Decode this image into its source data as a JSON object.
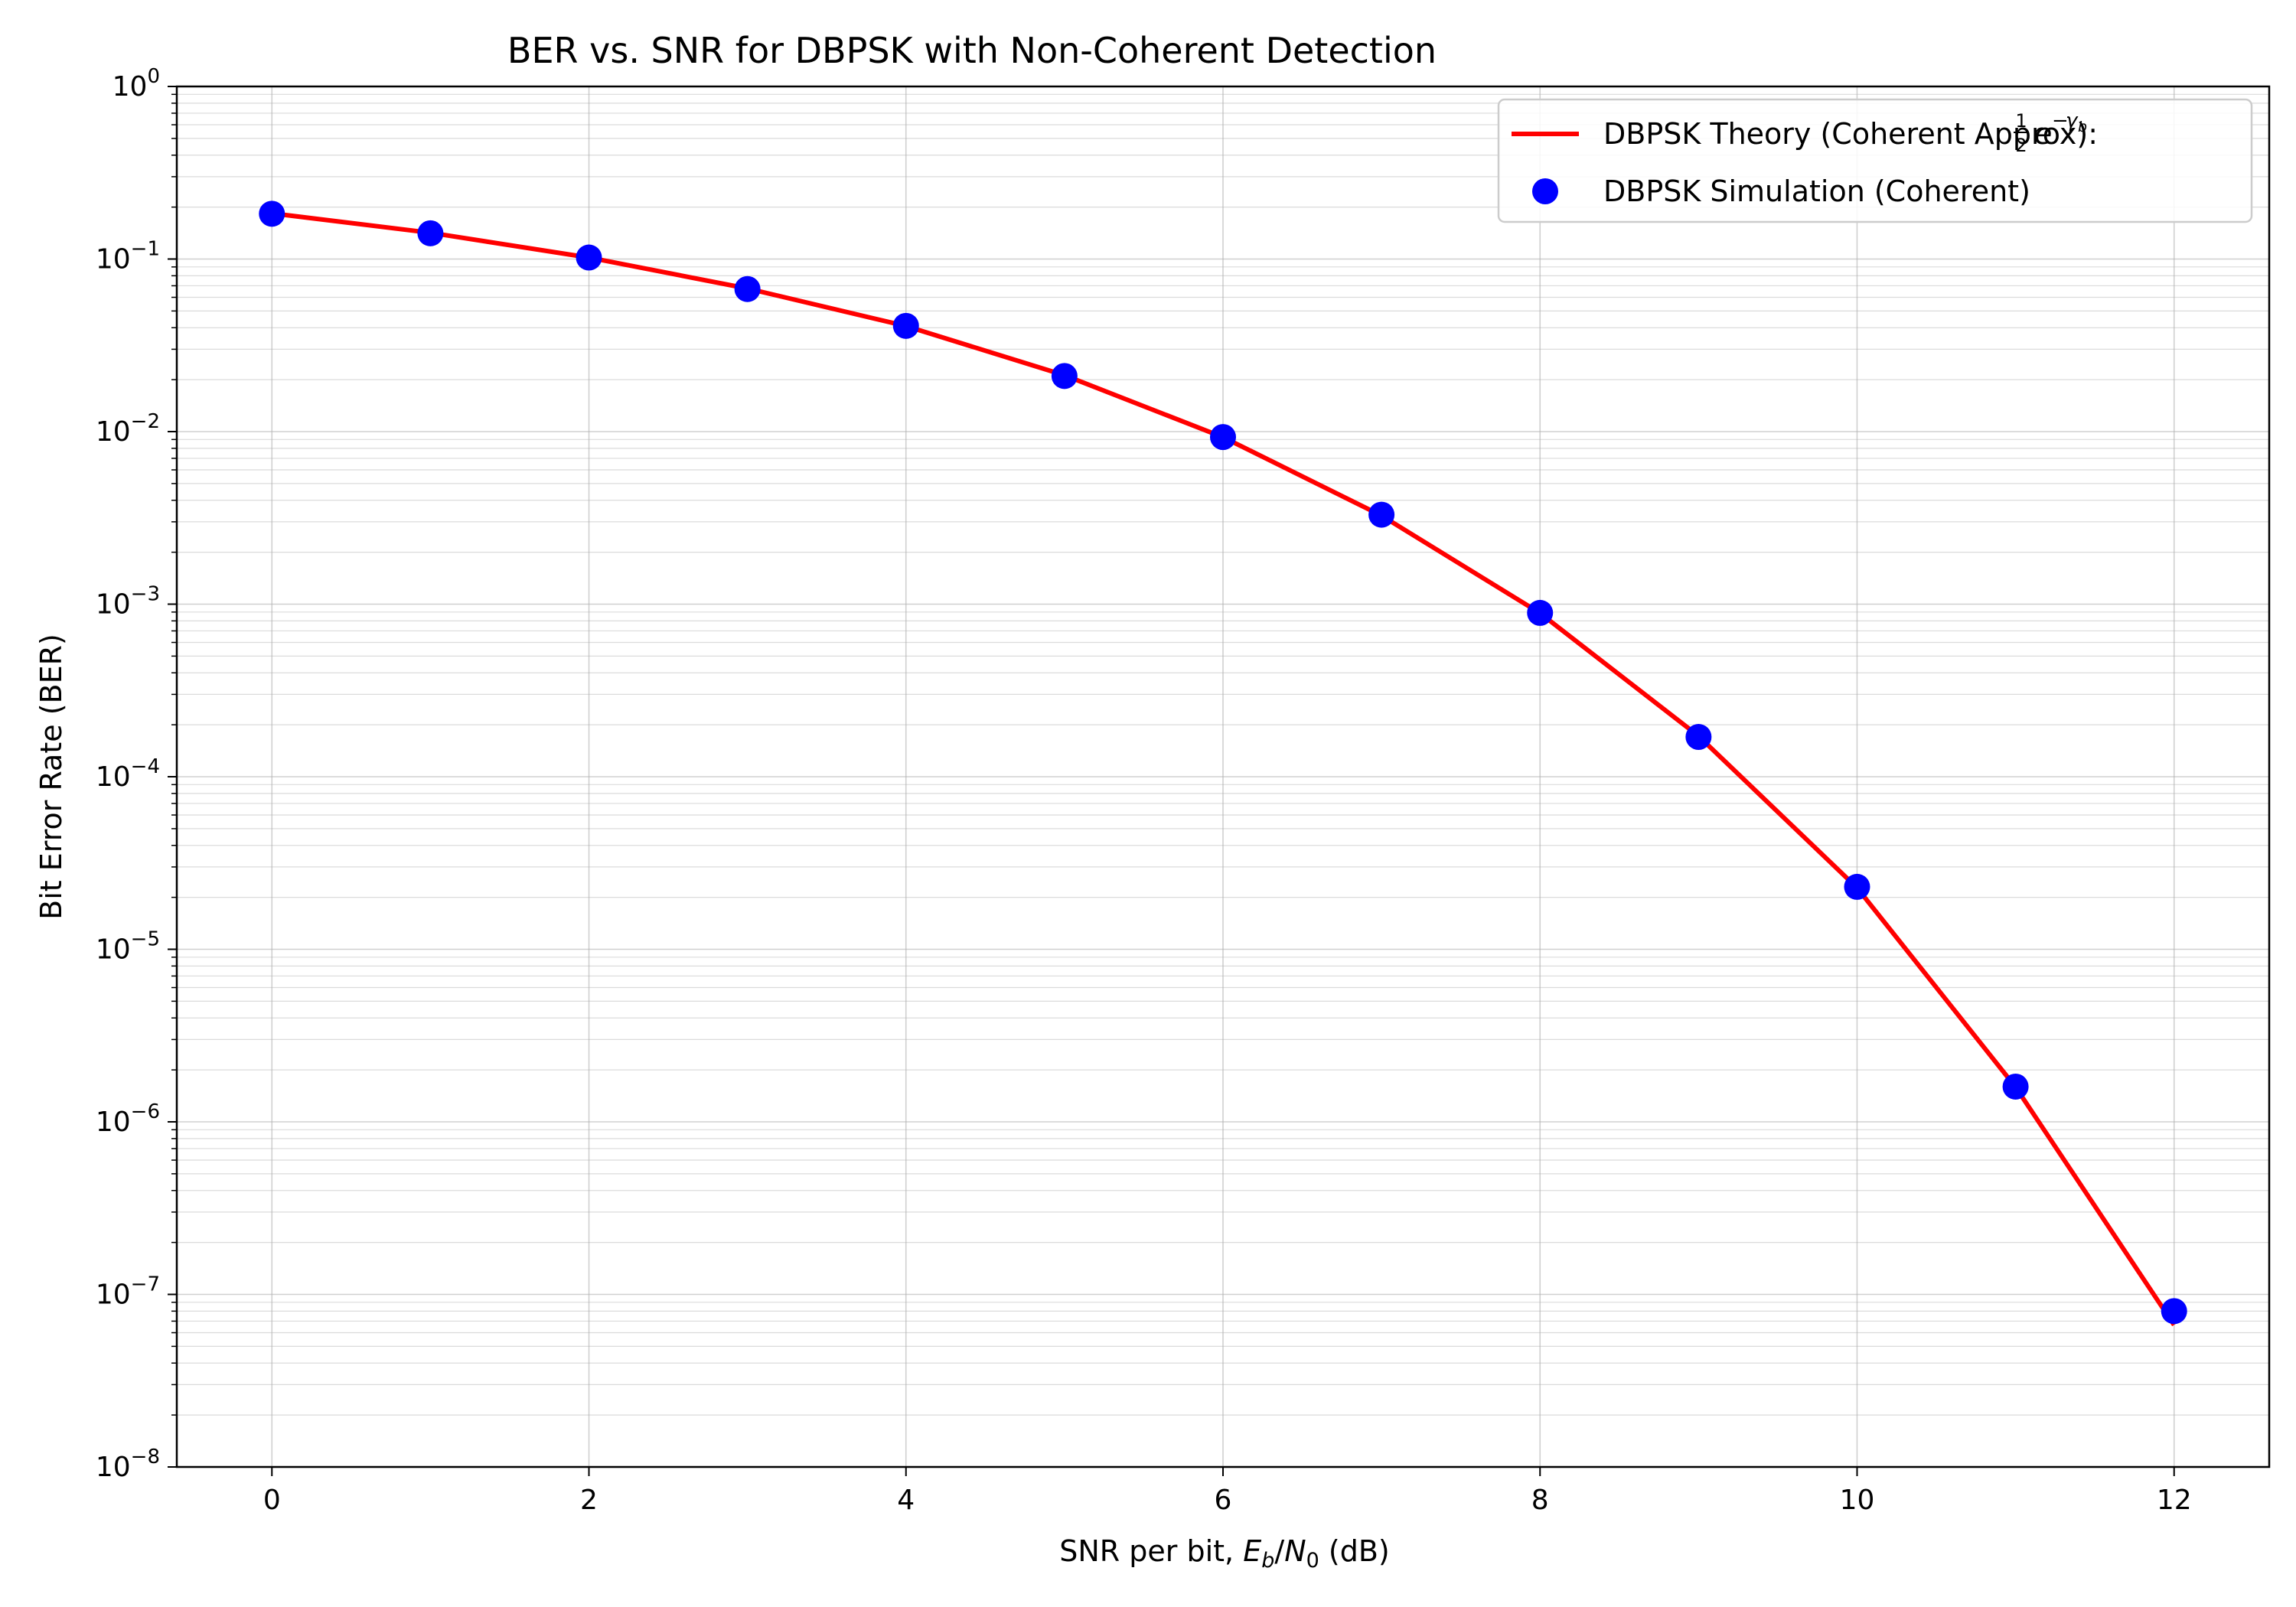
{
  "chart_data": {
    "type": "line",
    "title": "BER vs. SNR for DBPSK with Non-Coherent Detection",
    "xlabel_prefix": "SNR per bit, ",
    "xlabel_suffix": " (dB)",
    "ylabel": "Bit Error Rate (BER)",
    "y_scale": "log",
    "xlim": [
      -0.6,
      12.6
    ],
    "ylim": [
      1e-08,
      1
    ],
    "x_ticks": [
      0,
      2,
      4,
      6,
      8,
      10,
      12
    ],
    "y_tick_exponents": [
      0,
      -1,
      -2,
      -3,
      -4,
      -5,
      -6,
      -7,
      -8
    ],
    "grid": "both",
    "legend_position": "top-right",
    "x": [
      0,
      1,
      2,
      3,
      4,
      5,
      6,
      7,
      8,
      9,
      10,
      11,
      12
    ],
    "series": [
      {
        "name": "DBPSK Theory (Coherent Approx):",
        "kind": "line",
        "color": "#ff0000",
        "values": [
          0.184,
          0.142,
          0.102,
          0.0675,
          0.0409,
          0.0212,
          0.00928,
          0.00326,
          0.000887,
          0.000172,
          2.27e-05,
          1.59e-06,
          6.65e-08
        ]
      },
      {
        "name": "DBPSK Simulation (Coherent)",
        "kind": "scatter",
        "color": "#0000ff",
        "values": [
          0.183,
          0.141,
          0.102,
          0.067,
          0.041,
          0.021,
          0.0093,
          0.0033,
          0.00089,
          0.00017,
          2.3e-05,
          1.6e-06,
          8e-08
        ]
      }
    ]
  }
}
